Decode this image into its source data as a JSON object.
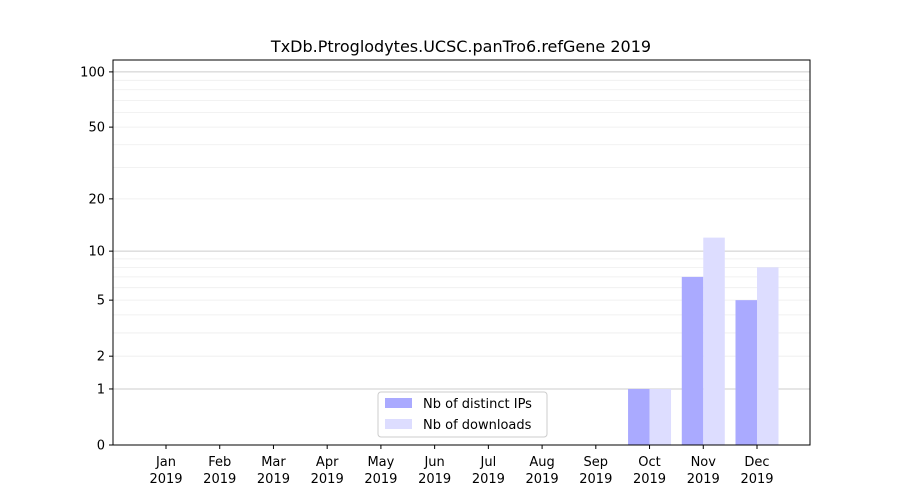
{
  "chart_data": {
    "type": "bar",
    "title": "TxDb.Ptroglodytes.UCSC.panTro6.refGene 2019",
    "xlabel": "",
    "ylabel": "",
    "yscale": "log10(1+y)",
    "ylim": [
      0,
      116
    ],
    "categories": [
      [
        "Jan",
        "2019"
      ],
      [
        "Feb",
        "2019"
      ],
      [
        "Mar",
        "2019"
      ],
      [
        "Apr",
        "2019"
      ],
      [
        "May",
        "2019"
      ],
      [
        "Jun",
        "2019"
      ],
      [
        "Jul",
        "2019"
      ],
      [
        "Aug",
        "2019"
      ],
      [
        "Sep",
        "2019"
      ],
      [
        "Oct",
        "2019"
      ],
      [
        "Nov",
        "2019"
      ],
      [
        "Dec",
        "2019"
      ]
    ],
    "yticks": [
      0,
      1,
      2,
      5,
      10,
      20,
      50,
      100
    ],
    "ytick_labels": [
      "0",
      "1",
      "2",
      "5",
      "10",
      "20",
      "50",
      "100"
    ],
    "major_grid": [
      1,
      10,
      100
    ],
    "minor_grid": [
      2,
      3,
      4,
      5,
      6,
      7,
      8,
      9,
      20,
      30,
      40,
      50,
      60,
      70,
      80,
      90
    ],
    "series": [
      {
        "name": "Nb of distinct IPs",
        "color": "#aaaaff",
        "values": [
          0,
          0,
          0,
          0,
          0,
          0,
          0,
          0,
          0,
          1,
          7,
          5
        ]
      },
      {
        "name": "Nb of downloads",
        "color": "#ddddff",
        "values": [
          0,
          0,
          0,
          0,
          0,
          0,
          0,
          0,
          0,
          1,
          12,
          8
        ]
      }
    ],
    "legend_position": "lower-center"
  }
}
